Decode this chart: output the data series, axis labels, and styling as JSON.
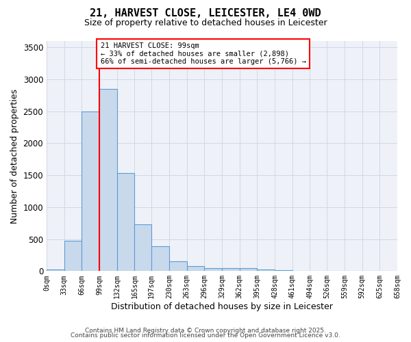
{
  "title": "21, HARVEST CLOSE, LEICESTER, LE4 0WD",
  "subtitle": "Size of property relative to detached houses in Leicester",
  "xlabel": "Distribution of detached houses by size in Leicester",
  "ylabel": "Number of detached properties",
  "bar_values": [
    30,
    470,
    2500,
    2850,
    1530,
    730,
    390,
    150,
    80,
    50,
    45,
    50,
    20,
    10,
    5,
    2,
    1,
    0,
    0,
    0
  ],
  "bin_edges": [
    0,
    33,
    66,
    99,
    132,
    165,
    197,
    230,
    263,
    296,
    329,
    362,
    395,
    428,
    461,
    494,
    526,
    559,
    592,
    625,
    658
  ],
  "bar_color": "#c9d9ec",
  "bar_edge_color": "#5b9bd5",
  "red_line_x": 99,
  "annotation_text": "21 HARVEST CLOSE: 99sqm\n← 33% of detached houses are smaller (2,898)\n66% of semi-detached houses are larger (5,766) →",
  "annotation_box_color": "white",
  "annotation_box_edge_color": "red",
  "ylim": [
    0,
    3600
  ],
  "yticks": [
    0,
    500,
    1000,
    1500,
    2000,
    2500,
    3000,
    3500
  ],
  "xtick_labels": [
    "0sqm",
    "33sqm",
    "66sqm",
    "99sqm",
    "132sqm",
    "165sqm",
    "197sqm",
    "230sqm",
    "263sqm",
    "296sqm",
    "329sqm",
    "362sqm",
    "395sqm",
    "428sqm",
    "461sqm",
    "494sqm",
    "526sqm",
    "559sqm",
    "592sqm",
    "625sqm",
    "658sqm"
  ],
  "grid_color": "#d0d8e4",
  "background_color": "#eef2f8",
  "footer_line1": "Contains HM Land Registry data © Crown copyright and database right 2025.",
  "footer_line2": "Contains public sector information licensed under the Open Government Licence v3.0."
}
